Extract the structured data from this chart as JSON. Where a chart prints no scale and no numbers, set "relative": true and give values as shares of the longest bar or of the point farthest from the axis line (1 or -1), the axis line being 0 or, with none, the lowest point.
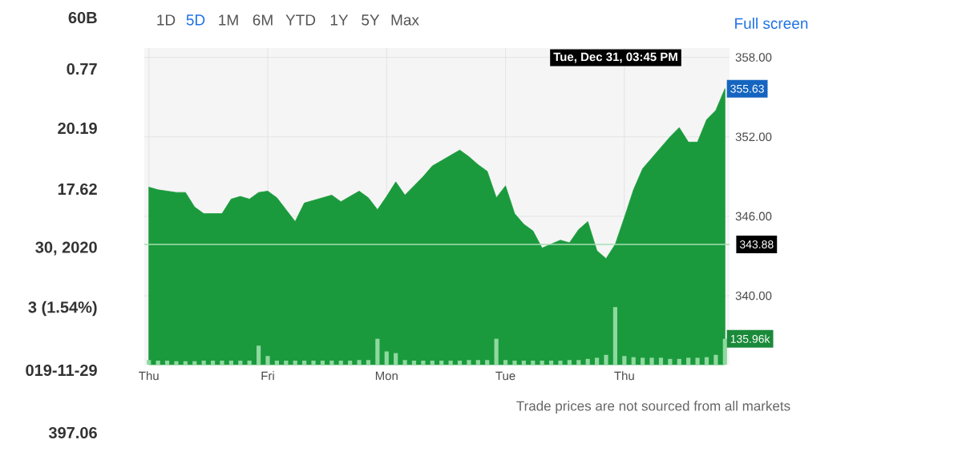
{
  "chart_data": [
    {
      "type": "area",
      "categories": [
        "Thu",
        null,
        null,
        null,
        null,
        null,
        null,
        null,
        null,
        null,
        null,
        null,
        null,
        "Fri",
        null,
        null,
        null,
        null,
        null,
        null,
        null,
        null,
        null,
        null,
        null,
        null,
        "Mon",
        null,
        null,
        null,
        null,
        null,
        null,
        null,
        null,
        null,
        null,
        null,
        null,
        "Tue",
        null,
        null,
        null,
        null,
        null,
        null,
        null,
        null,
        null,
        null,
        null,
        null,
        "Thu",
        null,
        null,
        null,
        null,
        null,
        null,
        null,
        null,
        null,
        null,
        null
      ],
      "ylim": [
        334.8,
        358.7
      ],
      "yticks": [
        {
          "value": 340,
          "label": "340.00"
        },
        {
          "value": 346,
          "label": "346.00"
        },
        {
          "value": 352,
          "label": "352.00"
        },
        {
          "value": 358,
          "label": "358.00"
        }
      ],
      "grid": true,
      "color": "#1a9a3c",
      "values": [
        348.2,
        348.0,
        347.9,
        347.8,
        347.8,
        346.7,
        346.2,
        346.2,
        346.2,
        347.3,
        347.5,
        347.3,
        347.8,
        347.9,
        347.4,
        346.5,
        345.6,
        347.0,
        347.2,
        347.4,
        347.6,
        347.1,
        347.5,
        347.9,
        347.4,
        346.5,
        347.5,
        348.6,
        347.6,
        348.3,
        349.0,
        349.8,
        350.2,
        350.6,
        351.0,
        350.5,
        349.9,
        349.4,
        347.4,
        348.3,
        346.2,
        345.4,
        344.9,
        343.6,
        343.9,
        344.2,
        344.0,
        345.0,
        345.6,
        343.4,
        342.8,
        343.88,
        345.9,
        348.0,
        349.6,
        350.4,
        351.2,
        352.0,
        352.7,
        351.6,
        351.6,
        353.3,
        354.0,
        355.63
      ],
      "value_labels": [
        null,
        null,
        null,
        null,
        null,
        null,
        null,
        null,
        null,
        null,
        null,
        null,
        null,
        null,
        null,
        null,
        null,
        null,
        null,
        null,
        null,
        null,
        null,
        null,
        null,
        null,
        null,
        null,
        null,
        null,
        null,
        null,
        null,
        null,
        null,
        null,
        null,
        null,
        null,
        null,
        null,
        null,
        null,
        null,
        null,
        null,
        null,
        null,
        null,
        null,
        null,
        null,
        null,
        null,
        null,
        null,
        null,
        null,
        null,
        null,
        null,
        null,
        null,
        "355.63"
      ],
      "ref_lines": [
        {
          "axis": "y",
          "value": 343.88,
          "label": "343.88",
          "color": "#a8dcb4"
        }
      ],
      "annotations": [
        "1D",
        "5D",
        "1M",
        "6M",
        "YTD",
        "1Y",
        "5Y",
        "Max",
        "Full screen",
        "Trade prices are not sourced from all markets",
        "60B",
        "0.77",
        "20.19",
        "17.62",
        "30, 2020",
        "3 (1.54%)",
        "019-11-29",
        "397.06",
        "Tue, Dec 31, 03:45 PM"
      ]
    },
    {
      "type": "bar",
      "relative": true,
      "color": "#8fd99f",
      "categories": [
        null,
        null,
        null,
        null,
        null,
        null,
        null,
        null,
        null,
        null,
        null,
        null,
        null,
        null,
        null,
        null,
        null,
        null,
        null,
        null,
        null,
        null,
        null,
        null,
        null,
        null,
        null,
        null,
        null,
        null,
        null,
        null,
        null,
        null,
        null,
        null,
        null,
        null,
        null,
        null,
        null,
        null,
        null,
        null,
        null,
        null,
        null,
        null,
        null,
        null,
        null,
        null,
        null,
        null,
        null,
        null,
        null,
        null,
        null,
        null,
        null,
        null,
        null,
        null
      ],
      "values": [
        0.08,
        0.07,
        0.07,
        0.06,
        0.06,
        0.06,
        0.07,
        0.07,
        0.07,
        0.07,
        0.07,
        0.07,
        0.33,
        0.15,
        0.07,
        0.07,
        0.07,
        0.07,
        0.07,
        0.07,
        0.07,
        0.07,
        0.07,
        0.08,
        0.08,
        0.45,
        0.23,
        0.2,
        0.08,
        0.07,
        0.07,
        0.07,
        0.07,
        0.07,
        0.07,
        0.08,
        0.08,
        0.08,
        0.45,
        0.08,
        0.07,
        0.07,
        0.07,
        0.07,
        0.07,
        0.07,
        0.08,
        0.08,
        0.1,
        0.12,
        0.17,
        1,
        0.15,
        0.13,
        0.12,
        0.12,
        0.12,
        0.1,
        0.1,
        0.12,
        0.12,
        0.13,
        0.17,
        0.45
      ],
      "annotations": [
        "135.96k"
      ]
    }
  ]
}
